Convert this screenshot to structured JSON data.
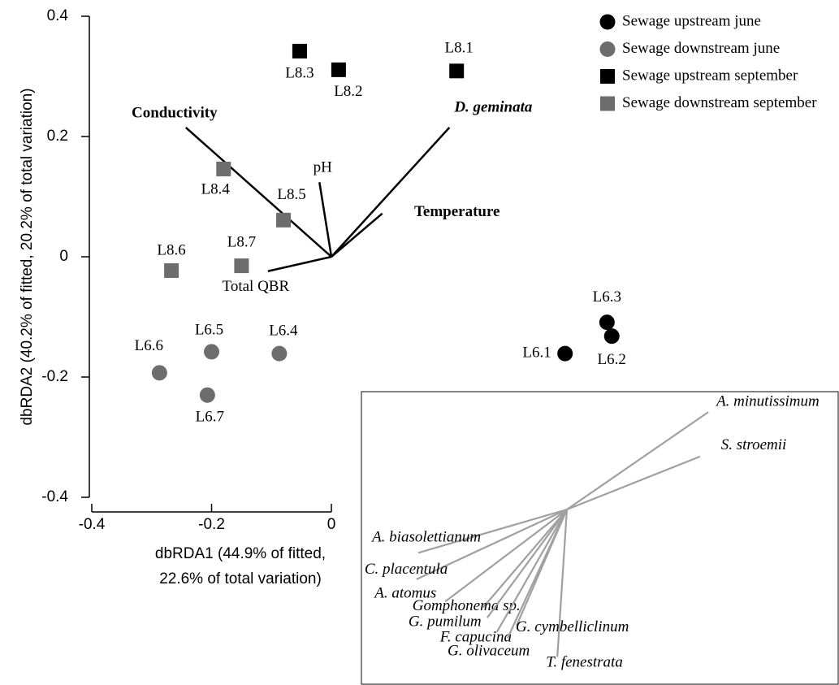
{
  "chart_data": {
    "type": "scatter",
    "xlabel": [
      "dbRDA1 (44.9% of fitted,",
      "22.6% of total variation)"
    ],
    "ylabel": "dbRDA2 (40.2% of fitted, 20.2% of total variation)",
    "xlim": [
      -0.4,
      0.85
    ],
    "ylim": [
      -0.4,
      0.4
    ],
    "xticks": [
      -0.4,
      -0.2,
      0
    ],
    "yticks": [
      -0.4,
      -0.2,
      0,
      0.2,
      0.4
    ],
    "series": [
      {
        "name": "Sewage upstream june",
        "color": "#000000",
        "marker": "circle",
        "labels": [
          "L6.1",
          "L6.3",
          "L6.2"
        ],
        "x": [
          0.39,
          0.46,
          0.468
        ],
        "y": [
          -0.161,
          -0.109,
          -0.132
        ]
      },
      {
        "name": "Sewage downstream june",
        "color": "#6d6d6d",
        "marker": "circle",
        "labels": [
          "L6.6",
          "L6.5",
          "L6.4",
          "L6.7"
        ],
        "x": [
          -0.287,
          -0.2,
          -0.087,
          -0.207
        ],
        "y": [
          -0.193,
          -0.158,
          -0.161,
          -0.23
        ]
      },
      {
        "name": "Sewage upstream september",
        "color": "#000000",
        "marker": "square",
        "labels": [
          "L8.3",
          "L8.2",
          "L8.1"
        ],
        "x": [
          -0.053,
          0.012,
          0.209
        ],
        "y": [
          0.342,
          0.311,
          0.309
        ]
      },
      {
        "name": "Sewage downstream september",
        "color": "#6d6d6d",
        "marker": "square",
        "labels": [
          "L8.4",
          "L8.5",
          "L8.7",
          "L8.6"
        ],
        "x": [
          -0.18,
          -0.08,
          -0.15,
          -0.267
        ],
        "y": [
          0.146,
          0.061,
          -0.015,
          -0.023
        ]
      }
    ],
    "vectors": [
      {
        "name": "Conductivity",
        "x": -0.243,
        "y": 0.215,
        "bold": true
      },
      {
        "name": "D. geminata",
        "x": 0.197,
        "y": 0.215,
        "bold": true,
        "italic": true
      },
      {
        "name": "pH",
        "x": -0.02,
        "y": 0.124
      },
      {
        "name": "Temperature",
        "x": 0.085,
        "y": 0.072,
        "bold": true
      },
      {
        "name": "Total QBR",
        "x": -0.106,
        "y": -0.024
      }
    ],
    "inset_vectors": [
      {
        "name": "A. minutissimum",
        "x": 0.236,
        "y": 0.162
      },
      {
        "name": "S. stroemii",
        "x": 0.222,
        "y": 0.088
      },
      {
        "name": "A. biasolettianum",
        "x": -0.248,
        "y": -0.072
      },
      {
        "name": "C. placentula",
        "x": -0.251,
        "y": -0.116
      },
      {
        "name": "A. atomus",
        "x": -0.203,
        "y": -0.153
      },
      {
        "name": "Gomphonema sp.",
        "x": -0.14,
        "y": -0.163
      },
      {
        "name": "G. pumilum",
        "x": -0.133,
        "y": -0.18
      },
      {
        "name": "F. capucina",
        "x": -0.117,
        "y": -0.204
      },
      {
        "name": "G. olivaceum",
        "x": -0.099,
        "y": -0.214
      },
      {
        "name": "G. cymbelliclinum",
        "x": -0.084,
        "y": -0.193
      },
      {
        "name": "T. fenestrata",
        "x": -0.016,
        "y": -0.245
      }
    ]
  }
}
